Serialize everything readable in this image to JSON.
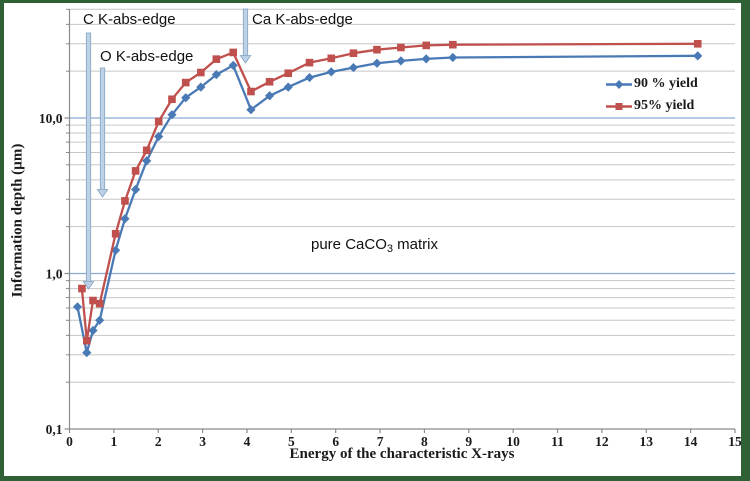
{
  "frame": {
    "border_color": "#2f6036",
    "background": "#ffffff"
  },
  "colors": {
    "axis": "#8a8a8a",
    "major_gridline": "#8aaad2",
    "minor_gridline": "#c6c6c6",
    "arrow_fill": "#bdd2e6",
    "arrow_stroke": "#84a3c3",
    "text": "#1a1a1a"
  },
  "chart_data": {
    "type": "line",
    "title": "",
    "xlabel": "Energy of the characteristic X-rays",
    "ylabel": "Information depth (µm)",
    "x_scale": "linear",
    "y_scale": "log",
    "xlim": [
      0,
      15
    ],
    "ylim": [
      0.1,
      50
    ],
    "grid": true,
    "legend_position": "inside-right",
    "x_ticks": [
      0,
      1,
      2,
      3,
      4,
      5,
      6,
      7,
      8,
      9,
      10,
      11,
      12,
      13,
      14,
      15
    ],
    "y_tick_labels": [
      {
        "value": 0.1,
        "label": "0,1"
      },
      {
        "value": 1,
        "label": "1,0"
      },
      {
        "value": 10,
        "label": "10,0"
      }
    ],
    "y_major_gridlines": [
      1,
      10
    ],
    "y_minor_gridlines": [
      0.2,
      0.3,
      0.4,
      0.5,
      0.6,
      0.7,
      0.8,
      0.9,
      2,
      3,
      4,
      5,
      6,
      7,
      8,
      9,
      20,
      30,
      40,
      50
    ],
    "series": [
      {
        "name": "90 % yield",
        "color": "#4a7ab5",
        "marker": "diamond",
        "points": [
          [
            0.18,
            0.61
          ],
          [
            0.39,
            0.31
          ],
          [
            0.53,
            0.43
          ],
          [
            0.68,
            0.5
          ],
          [
            1.04,
            1.41
          ],
          [
            1.25,
            2.25
          ],
          [
            1.49,
            3.47
          ],
          [
            1.74,
            5.3
          ],
          [
            2.01,
            7.6
          ],
          [
            2.31,
            10.5
          ],
          [
            2.62,
            13.5
          ],
          [
            2.96,
            15.8
          ],
          [
            3.31,
            19.0
          ],
          [
            3.69,
            21.8
          ],
          [
            4.09,
            11.3
          ],
          [
            4.51,
            13.9
          ],
          [
            4.93,
            15.8
          ],
          [
            5.41,
            18.2
          ],
          [
            5.9,
            19.8
          ],
          [
            6.4,
            21.1
          ],
          [
            6.93,
            22.5
          ],
          [
            7.47,
            23.3
          ],
          [
            8.04,
            24.0
          ],
          [
            8.64,
            24.5
          ],
          [
            14.16,
            25.1
          ]
        ]
      },
      {
        "name": "95% yield",
        "color": "#c0504d",
        "marker": "square",
        "points": [
          [
            0.28,
            0.8
          ],
          [
            0.39,
            0.37
          ],
          [
            0.53,
            0.67
          ],
          [
            0.68,
            0.64
          ],
          [
            1.04,
            1.8
          ],
          [
            1.25,
            2.93
          ],
          [
            1.49,
            4.57
          ],
          [
            1.74,
            6.2
          ],
          [
            2.01,
            9.5
          ],
          [
            2.31,
            13.2
          ],
          [
            2.62,
            16.9
          ],
          [
            2.96,
            19.6
          ],
          [
            3.31,
            23.9
          ],
          [
            3.69,
            26.4
          ],
          [
            4.09,
            14.8
          ],
          [
            4.51,
            17.1
          ],
          [
            4.93,
            19.4
          ],
          [
            5.41,
            22.7
          ],
          [
            5.9,
            24.2
          ],
          [
            6.4,
            26.1
          ],
          [
            6.93,
            27.5
          ],
          [
            7.47,
            28.4
          ],
          [
            8.04,
            29.3
          ],
          [
            8.64,
            29.6
          ],
          [
            14.16,
            30.0
          ]
        ]
      }
    ],
    "annotations": [
      {
        "label": "C K-abs-edge",
        "text_x": 83,
        "text_y": 11,
        "arrow_x": 88.5,
        "arrow_y1": 33,
        "arrow_y2": 289
      },
      {
        "label": "O K-abs-edge",
        "text_x": 100,
        "text_y": 48,
        "arrow_x": 102.5,
        "arrow_y1": 68,
        "arrow_y2": 197
      },
      {
        "label": "Ca K-abs-edge",
        "text_x": 252,
        "text_y": 11,
        "arrow_x": 245.5,
        "arrow_y1": 9,
        "arrow_y2": 63
      }
    ],
    "matrix_annotation": {
      "pre": "pure CaCO",
      "sub": "3",
      "post": " matrix",
      "x": 311,
      "y": 236
    }
  }
}
